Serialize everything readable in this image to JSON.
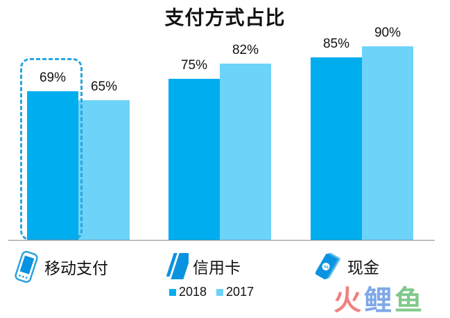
{
  "chart_data": {
    "type": "bar",
    "title": "支付方式占比",
    "categories": [
      "移动支付",
      "信用卡",
      "现金"
    ],
    "series": [
      {
        "name": "2018",
        "values": [
          69,
          75,
          85
        ],
        "color": "#00aeef"
      },
      {
        "name": "2017",
        "values": [
          65,
          82,
          90
        ],
        "color": "#6dd3f8"
      }
    ],
    "value_labels": {
      "2018": [
        "69%",
        "75%",
        "85%"
      ],
      "2017": [
        "65%",
        "82%",
        "90%"
      ]
    },
    "xlabel": "",
    "ylabel": "",
    "ylim": [
      0,
      100
    ],
    "grid": false,
    "legend_position": "bottom",
    "annotations": [
      "dashed highlight around 移动支付 2018 bar"
    ]
  },
  "title": "支付方式占比",
  "categories": [
    {
      "label": "移动支付",
      "icon": "mobile-phone-icon"
    },
    {
      "label": "信用卡",
      "icon": "credit-card-icon"
    },
    {
      "label": "现金",
      "icon": "cash-icon"
    }
  ],
  "labels": {
    "g0_2018": "69%",
    "g0_2017": "65%",
    "g1_2018": "75%",
    "g1_2017": "82%",
    "g2_2018": "85%",
    "g2_2017": "90%"
  },
  "legend": [
    {
      "label": "2018",
      "color": "#00aeef"
    },
    {
      "label": "2017",
      "color": "#6dd3f8"
    }
  ],
  "watermark": {
    "chars": [
      "火",
      "鲤",
      "鱼"
    ],
    "colors": [
      "#f08080",
      "#7fa8e8",
      "#7fc88a"
    ]
  }
}
